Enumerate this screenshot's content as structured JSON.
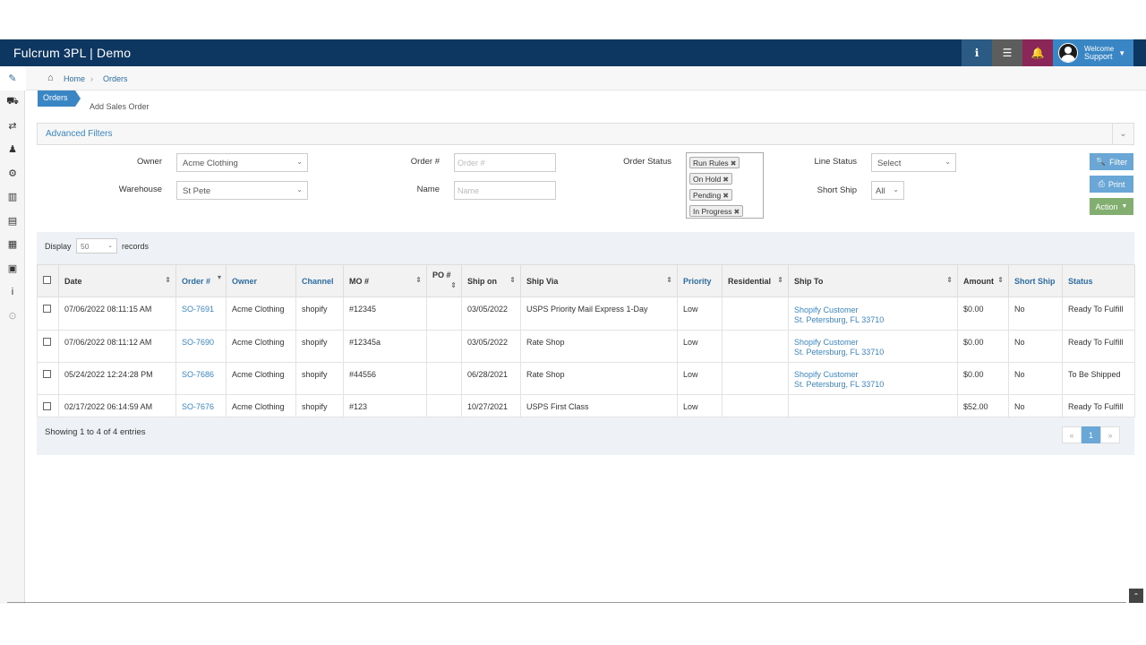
{
  "app": {
    "title": "Fulcrum 3PL | Demo"
  },
  "header": {
    "welcome": "Welcome",
    "user": "Support"
  },
  "breadcrumb": {
    "home": "Home",
    "orders": "Orders"
  },
  "tabs": {
    "orders": "Orders",
    "add_sales_order": "Add Sales Order"
  },
  "filters": {
    "title": "Advanced Filters",
    "owner_label": "Owner",
    "owner_value": "Acme Clothing",
    "warehouse_label": "Warehouse",
    "warehouse_value": "St Pete",
    "order_label": "Order #",
    "order_placeholder": "Order #",
    "name_label": "Name",
    "name_placeholder": "Name",
    "order_status_label": "Order Status",
    "order_status_tags": [
      "Run Rules",
      "On Hold",
      "Pending",
      "In Progress"
    ],
    "line_status_label": "Line Status",
    "line_status_value": "Select",
    "short_ship_label": "Short Ship",
    "short_ship_value": "All",
    "filter_btn": "Filter",
    "print_btn": "Print",
    "action_btn": "Action"
  },
  "table": {
    "display_label": "Display",
    "display_value": "50",
    "records_label": "records",
    "columns": [
      "Date",
      "Order #",
      "Owner",
      "Channel",
      "MO #",
      "PO #",
      "Ship on",
      "Ship Via",
      "Priority",
      "Residential",
      "Ship To",
      "Amount",
      "Short Ship",
      "Status"
    ],
    "rows": [
      {
        "date": "07/06/2022 08:11:15 AM",
        "order": "SO-7691",
        "owner": "Acme Clothing",
        "channel": "shopify",
        "mo": "#12345",
        "po": "",
        "ship_on": "03/05/2022",
        "ship_via": "USPS Priority Mail Express 1-Day",
        "priority": "Low",
        "residential": "",
        "ship_to_name": "Shopify Customer",
        "ship_to_addr": "St. Petersburg, FL 33710",
        "amount": "$0.00",
        "short_ship": "No",
        "status": "Ready To Fulfill"
      },
      {
        "date": "07/06/2022 08:11:12 AM",
        "order": "SO-7690",
        "owner": "Acme Clothing",
        "channel": "shopify",
        "mo": "#12345a",
        "po": "",
        "ship_on": "03/05/2022",
        "ship_via": "Rate Shop",
        "priority": "Low",
        "residential": "",
        "ship_to_name": "Shopify Customer",
        "ship_to_addr": "St. Petersburg, FL 33710",
        "amount": "$0.00",
        "short_ship": "No",
        "status": "Ready To Fulfill"
      },
      {
        "date": "05/24/2022 12:24:28 PM",
        "order": "SO-7686",
        "owner": "Acme Clothing",
        "channel": "shopify",
        "mo": "#44556",
        "po": "",
        "ship_on": "06/28/2021",
        "ship_via": "Rate Shop",
        "priority": "Low",
        "residential": "",
        "ship_to_name": "Shopify Customer",
        "ship_to_addr": "St. Petersburg, FL 33710",
        "amount": "$0.00",
        "short_ship": "No",
        "status": "To Be Shipped"
      },
      {
        "date": "02/17/2022 06:14:59 AM",
        "order": "SO-7676",
        "owner": "Acme Clothing",
        "channel": "shopify",
        "mo": "#123",
        "po": "",
        "ship_on": "10/27/2021",
        "ship_via": "USPS First Class",
        "priority": "Low",
        "residential": "",
        "ship_to_name": "",
        "ship_to_addr": "",
        "amount": "$52.00",
        "short_ship": "No",
        "status": "Ready To Fulfill"
      }
    ],
    "showing": "Showing 1 to 4 of 4 entries",
    "pager": {
      "prev": "«",
      "page": "1",
      "next": "»"
    }
  },
  "colors": {
    "navbar": "#0d3661",
    "accent": "#3a86c4",
    "bell": "#8b2758",
    "action": "#82af6f"
  }
}
